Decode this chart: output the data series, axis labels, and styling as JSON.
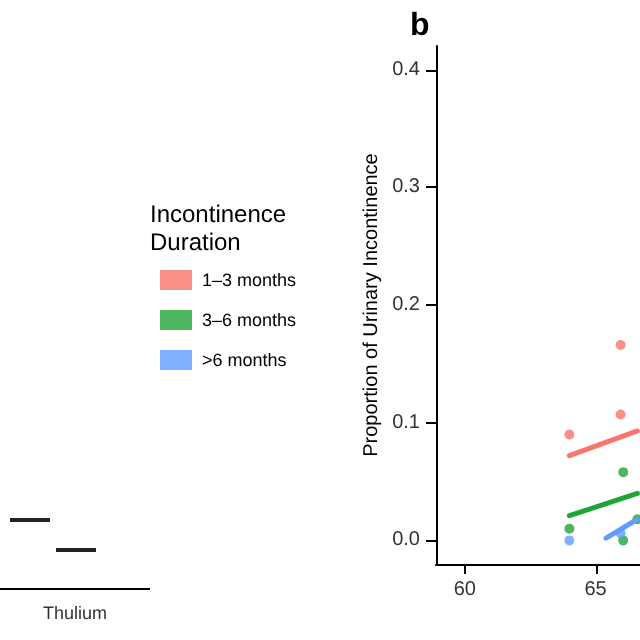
{
  "chart_data": [
    {
      "type": "other",
      "categories": [
        "Thulium"
      ]
    },
    {
      "type": "scatter",
      "title": "b",
      "ylabel": "Proportion of Urinary Incontinence",
      "legend_title": "Incontinence\nDuration",
      "legend": "left",
      "grid": false,
      "marker": "circle",
      "xlim": [
        58.9,
        66.7
      ],
      "xticks": [
        60,
        65
      ],
      "ylim": [
        -0.02,
        0.42
      ],
      "yticks": [
        {
          "value": 0,
          "label": "0.0"
        },
        {
          "value": 0.1,
          "label": "0.1"
        },
        {
          "value": 0.2,
          "label": "0.2"
        },
        {
          "value": 0.3,
          "label": "0.3"
        },
        {
          "value": 0.4,
          "label": "0.4"
        }
      ],
      "series": [
        {
          "name": "1–3 months",
          "color": "#f8766d",
          "x": [
            64.0,
            65.96,
            65.96
          ],
          "values": [
            0.09,
            0.166,
            0.107
          ]
        },
        {
          "name": "3–6 months",
          "color": "#1fa535",
          "x": [
            64.0,
            66.06,
            66.06,
            66.6
          ],
          "values": [
            0.01,
            0.058,
            0.0,
            0.018
          ]
        },
        {
          "name": ">6 months",
          "color": "#619cff",
          "x": [
            64.0,
            65.96
          ],
          "values": [
            0.0,
            0.006
          ]
        },
        {
          "type": "line",
          "marker": "none",
          "color": "#f8766d",
          "x": [
            64.0,
            66.6
          ],
          "values": [
            0.072,
            0.093
          ]
        },
        {
          "type": "line",
          "marker": "none",
          "color": "#1fa535",
          "x": [
            64.0,
            66.6
          ],
          "values": [
            0.021,
            0.04
          ]
        },
        {
          "type": "line",
          "marker": "none",
          "color": "#619cff",
          "x": [
            65.4,
            66.6
          ],
          "values": [
            0.002,
            0.018
          ]
        }
      ]
    }
  ]
}
